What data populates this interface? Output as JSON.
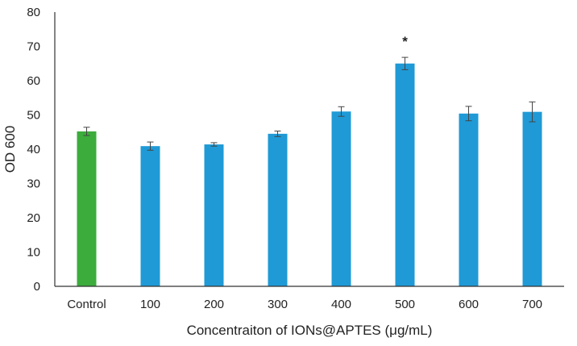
{
  "chart_data": {
    "type": "bar",
    "title": "",
    "xlabel": "Concentraiton of IONs@APTES (μg/mL)",
    "ylabel": "OD 600",
    "ylim": [
      0,
      80
    ],
    "yticks": [
      0,
      10,
      20,
      30,
      40,
      50,
      60,
      70,
      80
    ],
    "grid": false,
    "legend": "none",
    "categories": [
      "Control",
      "100",
      "200",
      "300",
      "400",
      "500",
      "600",
      "700"
    ],
    "values": [
      45.2,
      40.9,
      41.4,
      44.5,
      51.0,
      65.0,
      50.4,
      50.9
    ],
    "errors": [
      1.2,
      1.2,
      0.5,
      0.8,
      1.4,
      1.8,
      2.1,
      2.9
    ],
    "colors": [
      "#3cac3c",
      "#1f9ad6",
      "#1f9ad6",
      "#1f9ad6",
      "#1f9ad6",
      "#1f9ad6",
      "#1f9ad6",
      "#1f9ad6"
    ],
    "annotations": [
      {
        "category": "500",
        "text": "*"
      }
    ]
  }
}
